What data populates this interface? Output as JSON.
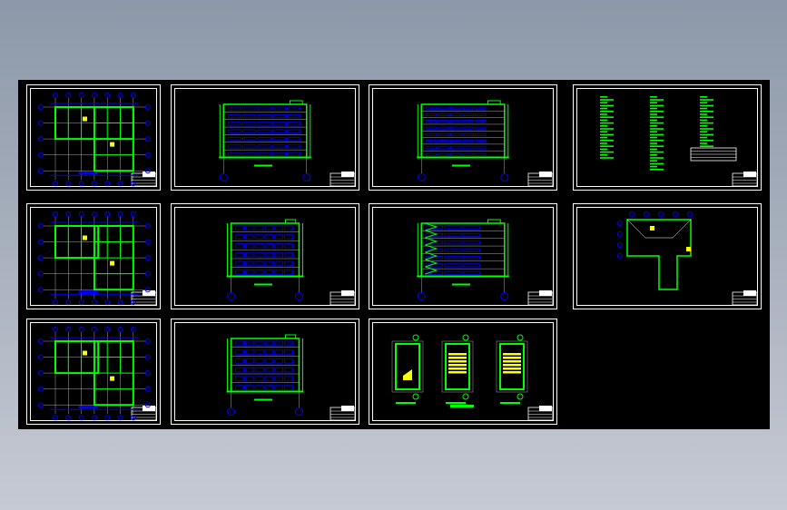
{
  "viewer": {
    "background": "#000000",
    "colors": {
      "frame": "#ffffff",
      "wall": "#00ff00",
      "grid": "#0000ff",
      "axis": "#aaaaaa",
      "highlight": "#ffff00",
      "accent": "#ff0000"
    }
  },
  "sheets": [
    {
      "kind": "floor-plan"
    },
    {
      "kind": "elevation"
    },
    {
      "kind": "elevation-tall"
    },
    {
      "kind": "notes"
    },
    {
      "kind": "floor-plan"
    },
    {
      "kind": "elevation-wide"
    },
    {
      "kind": "section"
    },
    {
      "kind": "roof-plan"
    },
    {
      "kind": "floor-plan"
    },
    {
      "kind": "elevation-wide"
    },
    {
      "kind": "stair-details"
    }
  ]
}
